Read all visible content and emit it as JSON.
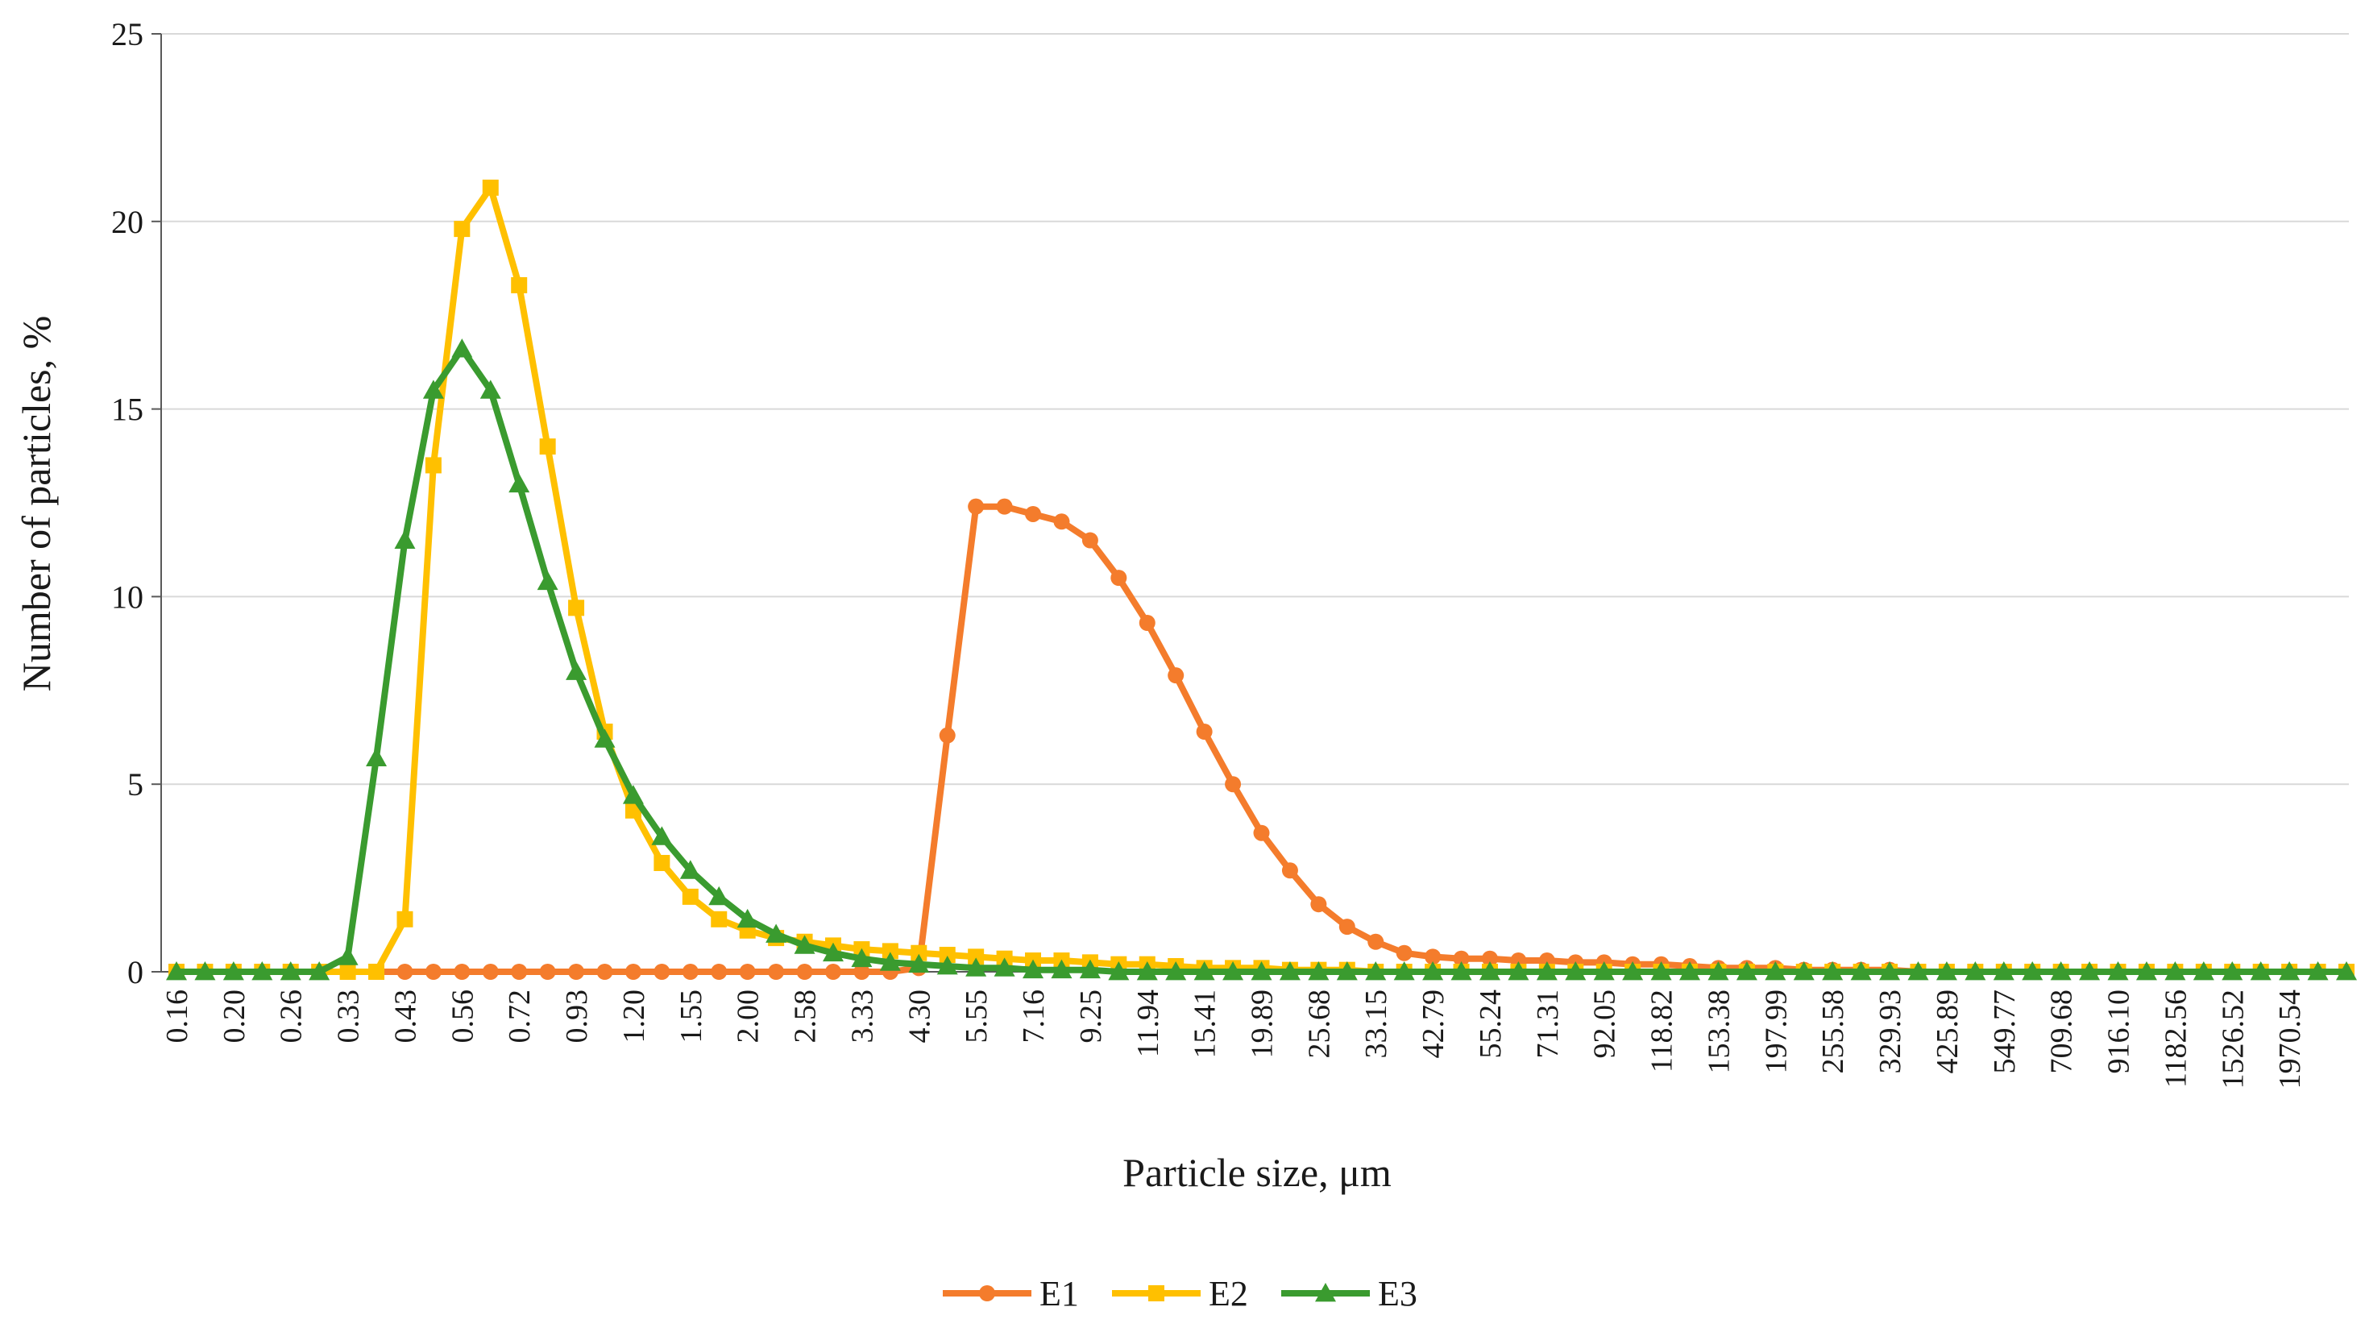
{
  "chart_data": {
    "type": "line",
    "title": "",
    "xlabel": "Particle size, μm",
    "ylabel": "Number of particles, %",
    "ylim": [
      0,
      25
    ],
    "yticks": [
      "0",
      "5",
      "10",
      "15",
      "20",
      "25"
    ],
    "x_tick_labels": [
      "0.16",
      "0.20",
      "0.26",
      "0.33",
      "0.43",
      "0.56",
      "0.72",
      "0.93",
      "1.20",
      "1.55",
      "2.00",
      "2.58",
      "3.33",
      "4.30",
      "5.55",
      "7.16",
      "9.25",
      "11.94",
      "15.41",
      "19.89",
      "25.68",
      "33.15",
      "42.79",
      "55.24",
      "71.31",
      "92.05",
      "118.82",
      "153.38",
      "197.99",
      "255.58",
      "329.93",
      "425.89",
      "549.77",
      "709.68",
      "916.10",
      "1182.56",
      "1526.52",
      "1970.54"
    ],
    "grid": true,
    "legend_position": "bottom",
    "series": [
      {
        "name": "E1",
        "color": "#F47C2C",
        "marker": "circle",
        "values": [
          0,
          0,
          0,
          0,
          0,
          0,
          0,
          0,
          0,
          0,
          0,
          0,
          0,
          0,
          0,
          0,
          0,
          0,
          0,
          0,
          0,
          0,
          0,
          0,
          0,
          0,
          0.1,
          6.3,
          12.4,
          12.4,
          12.2,
          12.0,
          11.5,
          10.5,
          9.3,
          7.9,
          6.4,
          5.0,
          3.7,
          2.7,
          1.8,
          1.2,
          0.8,
          0.5,
          0.4,
          0.35,
          0.35,
          0.3,
          0.3,
          0.25,
          0.25,
          0.2,
          0.2,
          0.15,
          0.1,
          0.1,
          0.1,
          0.05,
          0.05,
          0.05,
          0.05,
          0,
          0,
          0,
          0,
          0,
          0,
          0,
          0,
          0,
          0,
          0,
          0,
          0,
          0,
          0,
          0
        ]
      },
      {
        "name": "E2",
        "color": "#FFC000",
        "marker": "square",
        "values": [
          0,
          0,
          0,
          0,
          0,
          0,
          0,
          0,
          1.4,
          13.5,
          19.8,
          20.9,
          18.3,
          14.0,
          9.7,
          6.4,
          4.3,
          2.9,
          2.0,
          1.4,
          1.1,
          0.9,
          0.8,
          0.7,
          0.6,
          0.55,
          0.5,
          0.45,
          0.4,
          0.35,
          0.3,
          0.3,
          0.25,
          0.2,
          0.2,
          0.15,
          0.1,
          0.1,
          0.1,
          0.05,
          0.05,
          0.05,
          0,
          0,
          0,
          0,
          0,
          0,
          0,
          0,
          0,
          0,
          0,
          0,
          0,
          0,
          0,
          0,
          0,
          0,
          0,
          0,
          0,
          0,
          0,
          0,
          0,
          0,
          0,
          0,
          0,
          0,
          0,
          0,
          0,
          0,
          0
        ]
      },
      {
        "name": "E3",
        "color": "#3A9B2F",
        "marker": "triangle",
        "values": [
          0,
          0,
          0,
          0,
          0,
          0,
          0.4,
          5.7,
          11.5,
          15.5,
          16.6,
          15.5,
          13.0,
          10.4,
          8.0,
          6.2,
          4.7,
          3.6,
          2.7,
          2.0,
          1.4,
          1.0,
          0.7,
          0.5,
          0.35,
          0.25,
          0.2,
          0.15,
          0.1,
          0.1,
          0.05,
          0.05,
          0.05,
          0,
          0,
          0,
          0,
          0,
          0,
          0,
          0,
          0,
          0,
          0,
          0,
          0,
          0,
          0,
          0,
          0,
          0,
          0,
          0,
          0,
          0,
          0,
          0,
          0,
          0,
          0,
          0,
          0,
          0,
          0,
          0,
          0,
          0,
          0,
          0,
          0,
          0,
          0,
          0,
          0,
          0,
          0,
          0
        ]
      }
    ]
  }
}
